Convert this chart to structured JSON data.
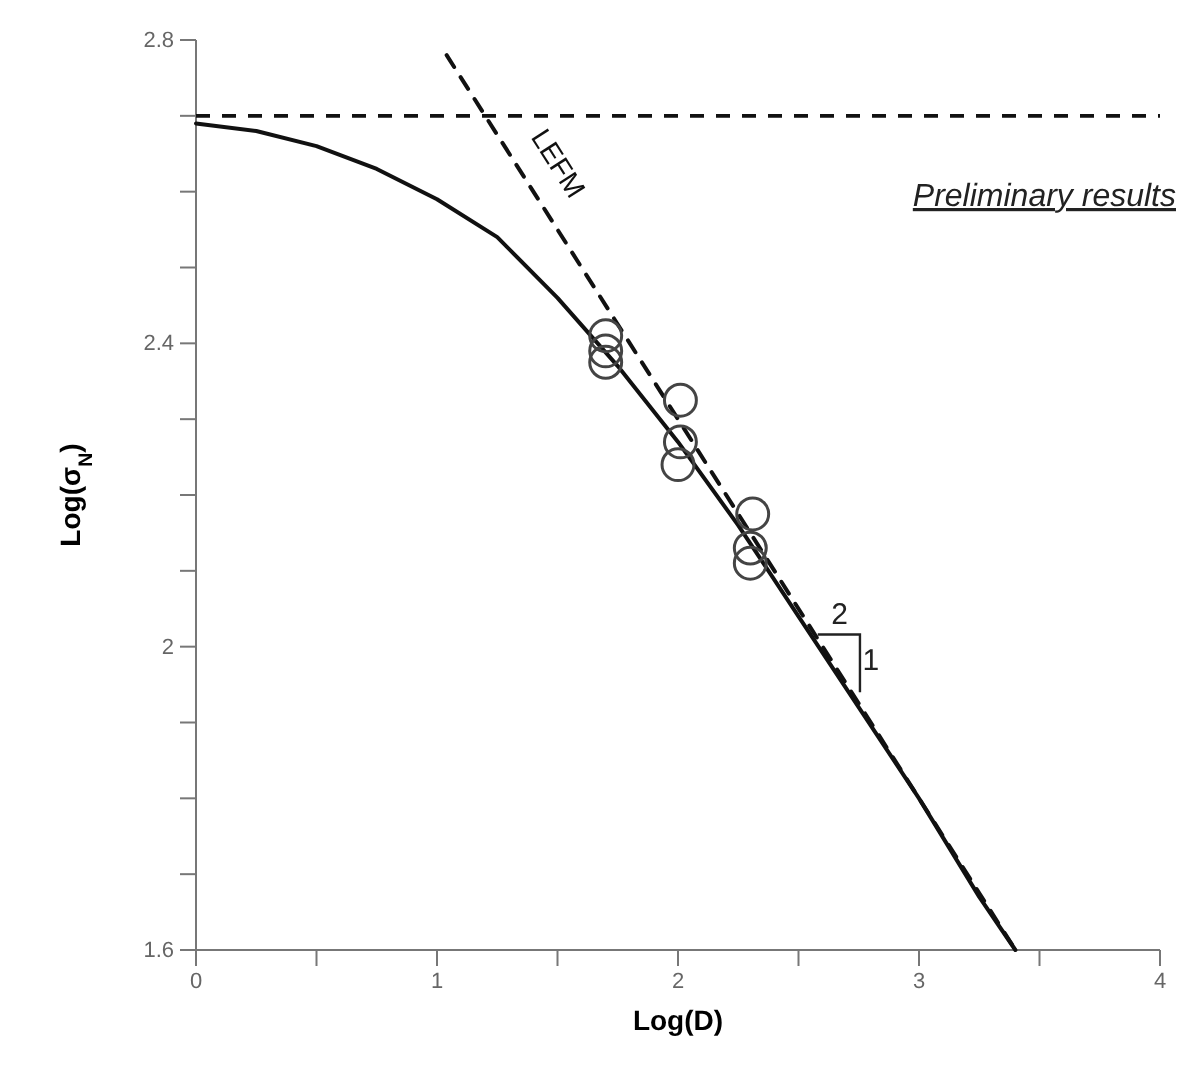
{
  "chart_data": {
    "type": "line",
    "xlabel": "Log(D)",
    "ylabel": "Log(σ$_{N}$)",
    "xlim": [
      0,
      4
    ],
    "ylim": [
      1.6,
      2.8
    ],
    "xticks": [
      0,
      {
        "value": 0.5,
        "label": null
      },
      1,
      {
        "value": 1.5,
        "label": null
      },
      2,
      {
        "value": 2.5,
        "label": null
      },
      3,
      {
        "value": 3.5,
        "label": null
      },
      4
    ],
    "yticks": [
      1.6,
      {
        "value": 1.7,
        "label": null
      },
      {
        "value": 1.8,
        "label": null
      },
      {
        "value": 1.9,
        "label": null
      },
      2,
      {
        "value": 2.1,
        "label": null
      },
      {
        "value": 2.2,
        "label": null
      },
      {
        "value": 2.3,
        "label": null
      },
      2.4,
      {
        "value": 2.5,
        "label": null
      },
      {
        "value": 2.6,
        "label": null
      },
      {
        "value": 2.7,
        "label": null
      },
      2.8
    ],
    "grid": false,
    "series": [
      {
        "color": "#111111",
        "line_style": "solid",
        "x": [
          0,
          0.25,
          0.5,
          0.75,
          1,
          1.25,
          1.5,
          1.75,
          2,
          2.25,
          2.5,
          2.75,
          3,
          3.25,
          3.4
        ],
        "values": [
          2.69,
          2.68,
          2.66,
          2.63,
          2.59,
          2.54,
          2.46,
          2.37,
          2.27,
          2.16,
          2.04,
          1.92,
          1.8,
          1.67,
          1.6
        ]
      },
      {
        "name": "LEFM",
        "color": "#111111",
        "line_style": "dashed",
        "x": [
          1.04,
          3.4
        ],
        "values": [
          2.78,
          1.6
        ]
      },
      {
        "type": "scatter",
        "color": "#444444",
        "marker": "circle",
        "x": [
          1.7,
          1.7,
          1.7,
          2.01,
          2.01,
          2.0,
          2.31,
          2.3,
          2.3
        ],
        "values": [
          2.41,
          2.39,
          2.375,
          2.325,
          2.27,
          2.24,
          2.175,
          2.13,
          2.11
        ]
      }
    ],
    "ref_lines": [
      {
        "axis": "y",
        "value": 2.7,
        "line_style": "dashed",
        "color": "#111111"
      }
    ],
    "annotations": [
      "Preliminary results",
      "2",
      "1"
    ]
  }
}
